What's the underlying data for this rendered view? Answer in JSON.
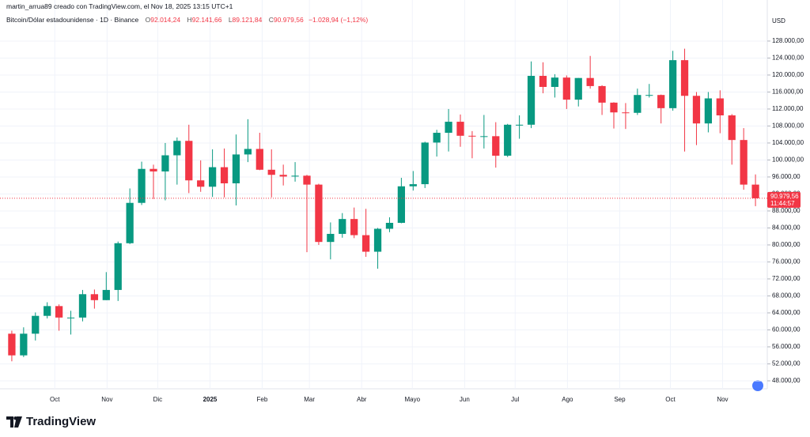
{
  "header": {
    "credit": "martin_arrua89 creado con TradingView.com, el Nov 18, 2025 13:15 UTC+1",
    "symbol": "Bitcoin/Dólar estadounidense · 1D · Binance",
    "o_label": "O",
    "o": "92.014,24",
    "h_label": "H",
    "h": "92.141,66",
    "l_label": "L",
    "l": "89.121,84",
    "c_label": "C",
    "c": "90.979,56",
    "change": "−1.028,94 (−1,12%)"
  },
  "brand": "TradingView",
  "chart_data": {
    "type": "candlestick",
    "currency": "USD",
    "up_color": "#089981",
    "down_color": "#f23645",
    "open": [
      59100,
      54000,
      59100,
      63300,
      65600,
      62900,
      62900,
      68400,
      67000,
      69400,
      80400,
      89900,
      97900,
      97300,
      101100,
      104500,
      95200,
      93700,
      98300,
      94500,
      101300,
      102600,
      97700,
      96500,
      96100,
      96300,
      94200,
      80700,
      82600,
      86100,
      82300,
      78400,
      83800,
      85200,
      93800,
      94300,
      104100,
      106400,
      109000,
      105700,
      105600,
      105600,
      101000,
      108300,
      108300,
      119800,
      117200,
      119400,
      114200,
      119300,
      117400,
      113500,
      111200,
      111100,
      115300,
      115300,
      112200,
      123500,
      115100,
      108600,
      114500,
      110500,
      104700,
      94200
    ],
    "high": [
      59800,
      60600,
      64100,
      66500,
      66000,
      64500,
      69400,
      69500,
      73600,
      80800,
      93300,
      99600,
      98900,
      104000,
      105300,
      108300,
      99900,
      102500,
      102700,
      106000,
      109600,
      106400,
      102500,
      98900,
      99500,
      96500,
      94400,
      85300,
      87500,
      88800,
      88500,
      84000,
      86500,
      95800,
      97400,
      104300,
      107100,
      112000,
      110700,
      106800,
      110600,
      108900,
      108500,
      110500,
      123200,
      123000,
      120200,
      119900,
      119300,
      124500,
      117600,
      113600,
      113400,
      116800,
      117900,
      115400,
      125700,
      126200,
      116000,
      116000,
      116400,
      110800,
      107500,
      96600
    ],
    "low": [
      52600,
      53600,
      57500,
      62700,
      59800,
      58900,
      62000,
      65000,
      67000,
      66800,
      80200,
      89400,
      90800,
      90500,
      94200,
      92200,
      92500,
      91300,
      91200,
      89300,
      99500,
      97600,
      91200,
      94000,
      94900,
      78300,
      80000,
      76600,
      81700,
      81600,
      77200,
      74400,
      83000,
      85100,
      92800,
      93400,
      100800,
      102000,
      103100,
      100400,
      102700,
      98200,
      100700,
      105000,
      107500,
      115700,
      114700,
      112000,
      112600,
      116800,
      110600,
      107400,
      107300,
      110600,
      114700,
      108600,
      111600,
      102000,
      103500,
      106500,
      106300,
      98900,
      93000,
      89121.84
    ],
    "close": [
      54000,
      59100,
      63300,
      65600,
      62900,
      62900,
      68400,
      67000,
      69400,
      80400,
      89900,
      97900,
      97300,
      101100,
      104500,
      95200,
      93700,
      98300,
      94500,
      101300,
      102600,
      97700,
      96500,
      96100,
      96300,
      94200,
      80700,
      82600,
      86100,
      82300,
      78400,
      83800,
      85200,
      93800,
      94300,
      104100,
      106400,
      109000,
      105700,
      105600,
      105600,
      101000,
      108300,
      108300,
      119800,
      117200,
      119400,
      114200,
      119300,
      117400,
      113500,
      111200,
      111100,
      115300,
      115300,
      112200,
      123500,
      115100,
      108600,
      114500,
      110500,
      104700,
      94200,
      90979.56
    ],
    "last_price_label": "90.979,56",
    "countdown": "11:44:57",
    "xlim": [
      -1,
      64
    ],
    "xticks": [
      {
        "value": 3.64,
        "label": "Oct"
      },
      {
        "value": 8.07,
        "label": "Nov"
      },
      {
        "value": 12.36,
        "label": "Dic"
      },
      {
        "value": 16.79,
        "label": "2025"
      },
      {
        "value": 21.21,
        "label": "Feb"
      },
      {
        "value": 25.21,
        "label": "Mar"
      },
      {
        "value": 29.64,
        "label": "Abr"
      },
      {
        "value": 33.93,
        "label": "Mayo"
      },
      {
        "value": 38.36,
        "label": "Jun"
      },
      {
        "value": 42.64,
        "label": "Jul"
      },
      {
        "value": 47.07,
        "label": "Ago"
      },
      {
        "value": 51.5,
        "label": "Sep"
      },
      {
        "value": 55.79,
        "label": "Oct"
      },
      {
        "value": 60.21,
        "label": "Nov"
      }
    ],
    "ylim": [
      46500,
      134500
    ],
    "yticks": [
      {
        "value": 48000,
        "label": "48.000,00"
      },
      {
        "value": 52000,
        "label": "52.000,00"
      },
      {
        "value": 56000,
        "label": "56.000,00"
      },
      {
        "value": 60000,
        "label": "60.000,00"
      },
      {
        "value": 64000,
        "label": "64.000,00"
      },
      {
        "value": 68000,
        "label": "68.000,00"
      },
      {
        "value": 72000,
        "label": "72.000,00"
      },
      {
        "value": 76000,
        "label": "76.000,00"
      },
      {
        "value": 80000,
        "label": "80.000,00"
      },
      {
        "value": 84000,
        "label": "84.000,00"
      },
      {
        "value": 88000,
        "label": "88.000,00"
      },
      {
        "value": 92000,
        "label": "92.000,00"
      },
      {
        "value": 96000,
        "label": "96.000,00"
      },
      {
        "value": 100000,
        "label": "100.000,00"
      },
      {
        "value": 104000,
        "label": "104.000,00"
      },
      {
        "value": 108000,
        "label": "108.000,00"
      },
      {
        "value": 112000,
        "label": "112.000,00"
      },
      {
        "value": 116000,
        "label": "116.000,00"
      },
      {
        "value": 120000,
        "label": "120.000,00"
      },
      {
        "value": 124000,
        "label": "124.000,00"
      },
      {
        "value": 128000,
        "label": "128.000,00"
      }
    ]
  }
}
